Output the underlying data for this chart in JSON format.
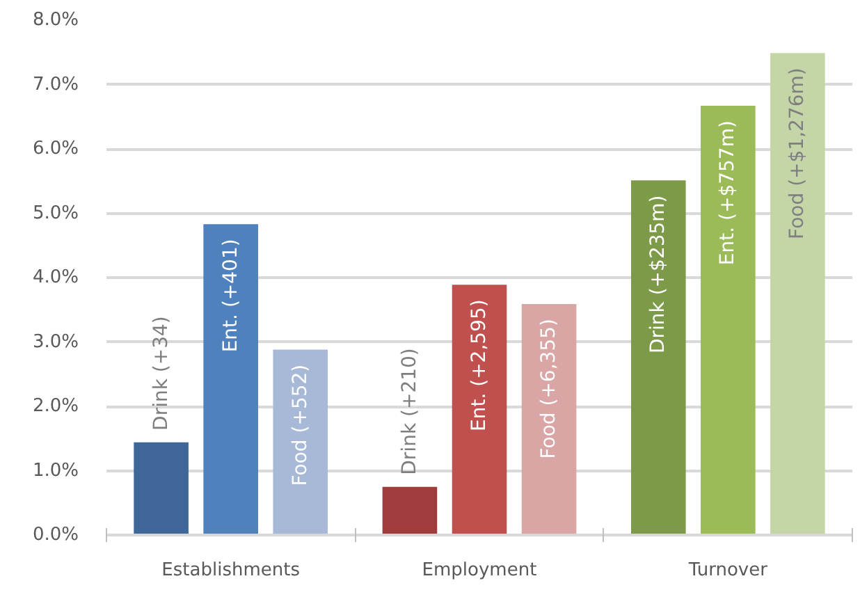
{
  "chart_data": {
    "type": "bar",
    "categories": [
      "Establishments",
      "Employment",
      "Turnover"
    ],
    "series": [
      {
        "colors": [
          "#3f6898",
          "#9e3d3c",
          "#7c9a47"
        ],
        "values": [
          1.44,
          0.75,
          5.51
        ]
      },
      {
        "colors": [
          "#4f81bd",
          "#c0504d",
          "#9bbb59"
        ],
        "values": [
          4.83,
          3.89,
          6.67
        ]
      },
      {
        "colors": [
          "#a8b9d8",
          "#d9a5a5",
          "#c4d6a8"
        ],
        "values": [
          2.88,
          3.59,
          7.49
        ]
      }
    ],
    "annotations": [
      "Drink (+34)",
      "Ent. (+401)",
      "Food (+552)",
      "Drink (+210)",
      "Ent. (+2,595)",
      "Food (+6,355)",
      "Drink (+$235m)",
      "Ent. (+$757m)",
      "Food (+$1,276m)"
    ],
    "ylim": [
      0,
      8
    ],
    "yticks": [
      {
        "value": 0,
        "label": "0.0%"
      },
      {
        "value": 1,
        "label": "1.0%"
      },
      {
        "value": 2,
        "label": "2.0%"
      },
      {
        "value": 3,
        "label": "3.0%"
      },
      {
        "value": 4,
        "label": "4.0%"
      },
      {
        "value": 5,
        "label": "5.0%"
      },
      {
        "value": 6,
        "label": "6.0%"
      },
      {
        "value": 7,
        "label": "7.0%"
      },
      {
        "value": 8,
        "label": "8.0%"
      }
    ],
    "grid": "y"
  }
}
